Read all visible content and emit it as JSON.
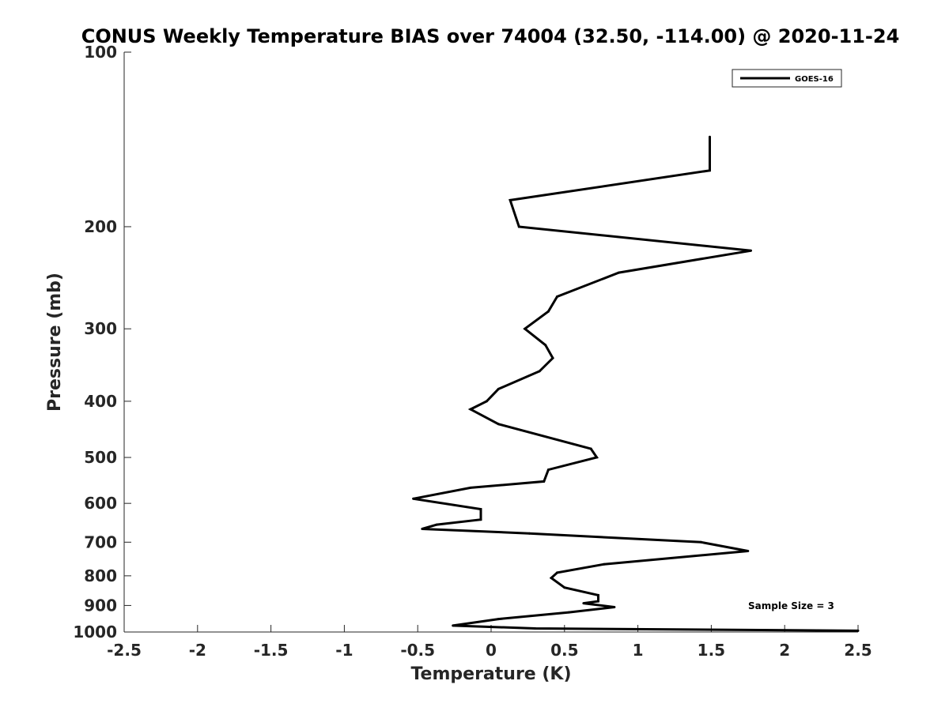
{
  "chart_data": {
    "type": "line",
    "title": "CONUS Weekly Temperature BIAS over 74004 (32.50, -114.00) @ 2020-11-24",
    "xlabel": "Temperature (K)",
    "ylabel": "Pressure (mb)",
    "xlim": [
      -2.5,
      2.5
    ],
    "ylim": [
      100,
      1000
    ],
    "yscale": "log",
    "y_reversed": true,
    "grid": false,
    "legend_position": "top-right",
    "x_ticks": [
      "-2.5",
      "-2",
      "-1.5",
      "-1",
      "-0.5",
      "0",
      "0.5",
      "1",
      "1.5",
      "2",
      "2.5"
    ],
    "x_tick_values": [
      -2.5,
      -2,
      -1.5,
      -1,
      -0.5,
      0,
      0.5,
      1,
      1.5,
      2,
      2.5
    ],
    "y_ticks": [
      "100",
      "200",
      "300",
      "400",
      "500",
      "600",
      "700",
      "800",
      "900",
      "1000"
    ],
    "y_tick_values": [
      100,
      200,
      300,
      400,
      500,
      600,
      700,
      800,
      900,
      1000
    ],
    "annotation": "Sample Size = 3",
    "series": [
      {
        "name": "GOES-16",
        "color": "#000000",
        "points": [
          {
            "x": 1.49,
            "y": 140
          },
          {
            "x": 1.49,
            "y": 160
          },
          {
            "x": 0.13,
            "y": 180
          },
          {
            "x": 0.19,
            "y": 200
          },
          {
            "x": 1.77,
            "y": 220
          },
          {
            "x": 0.87,
            "y": 240
          },
          {
            "x": 0.45,
            "y": 264
          },
          {
            "x": 0.39,
            "y": 280
          },
          {
            "x": 0.23,
            "y": 300
          },
          {
            "x": 0.37,
            "y": 320
          },
          {
            "x": 0.42,
            "y": 337
          },
          {
            "x": 0.33,
            "y": 355
          },
          {
            "x": 0.05,
            "y": 381
          },
          {
            "x": -0.03,
            "y": 400
          },
          {
            "x": -0.14,
            "y": 413
          },
          {
            "x": 0.05,
            "y": 438
          },
          {
            "x": 0.68,
            "y": 483
          },
          {
            "x": 0.72,
            "y": 500
          },
          {
            "x": 0.39,
            "y": 525
          },
          {
            "x": 0.36,
            "y": 550
          },
          {
            "x": -0.14,
            "y": 564
          },
          {
            "x": -0.53,
            "y": 589
          },
          {
            "x": -0.07,
            "y": 614
          },
          {
            "x": -0.07,
            "y": 640
          },
          {
            "x": -0.37,
            "y": 653
          },
          {
            "x": -0.47,
            "y": 664
          },
          {
            "x": 0.26,
            "y": 676
          },
          {
            "x": 1.43,
            "y": 700
          },
          {
            "x": 1.75,
            "y": 725
          },
          {
            "x": 0.77,
            "y": 764
          },
          {
            "x": 0.45,
            "y": 790
          },
          {
            "x": 0.41,
            "y": 807
          },
          {
            "x": 0.5,
            "y": 838
          },
          {
            "x": 0.73,
            "y": 864
          },
          {
            "x": 0.73,
            "y": 885
          },
          {
            "x": 0.63,
            "y": 892
          },
          {
            "x": 0.84,
            "y": 906
          },
          {
            "x": 0.53,
            "y": 925
          },
          {
            "x": 0.05,
            "y": 950
          },
          {
            "x": -0.26,
            "y": 975
          },
          {
            "x": 0.3,
            "y": 986
          },
          {
            "x": 2.5,
            "y": 995
          }
        ]
      }
    ]
  }
}
